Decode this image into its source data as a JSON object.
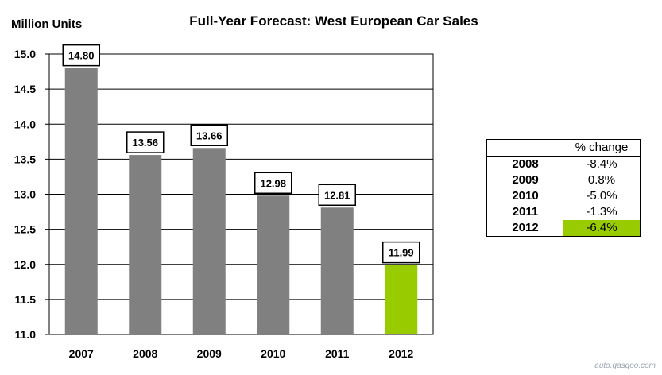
{
  "chart_data": {
    "type": "bar",
    "title": "Full-Year Forecast: West European Car Sales",
    "ylabel": "Million Units",
    "xlabel": "",
    "categories": [
      "2007",
      "2008",
      "2009",
      "2010",
      "2011",
      "2012"
    ],
    "values": [
      14.8,
      13.56,
      13.66,
      12.98,
      12.81,
      11.99
    ],
    "data_labels": [
      "14.80",
      "13.56",
      "13.66",
      "12.98",
      "12.81",
      "11.99"
    ],
    "ylim": [
      11.0,
      15.0
    ],
    "yticks": [
      "11.0",
      "11.5",
      "12.0",
      "12.5",
      "13.0",
      "13.5",
      "14.0",
      "14.5",
      "15.0"
    ],
    "grid": true,
    "colors": [
      "#808080",
      "#808080",
      "#808080",
      "#808080",
      "#808080",
      "#99cc00"
    ]
  },
  "pct_table": {
    "header": "% change",
    "rows": [
      {
        "year": "2008",
        "value": "-8.4%",
        "highlight": false
      },
      {
        "year": "2009",
        "value": "0.8%",
        "highlight": false
      },
      {
        "year": "2010",
        "value": "-5.0%",
        "highlight": false
      },
      {
        "year": "2011",
        "value": "-1.3%",
        "highlight": false
      },
      {
        "year": "2012",
        "value": "-6.4%",
        "highlight": true
      }
    ]
  },
  "watermark": "auto.gasgoo.com"
}
